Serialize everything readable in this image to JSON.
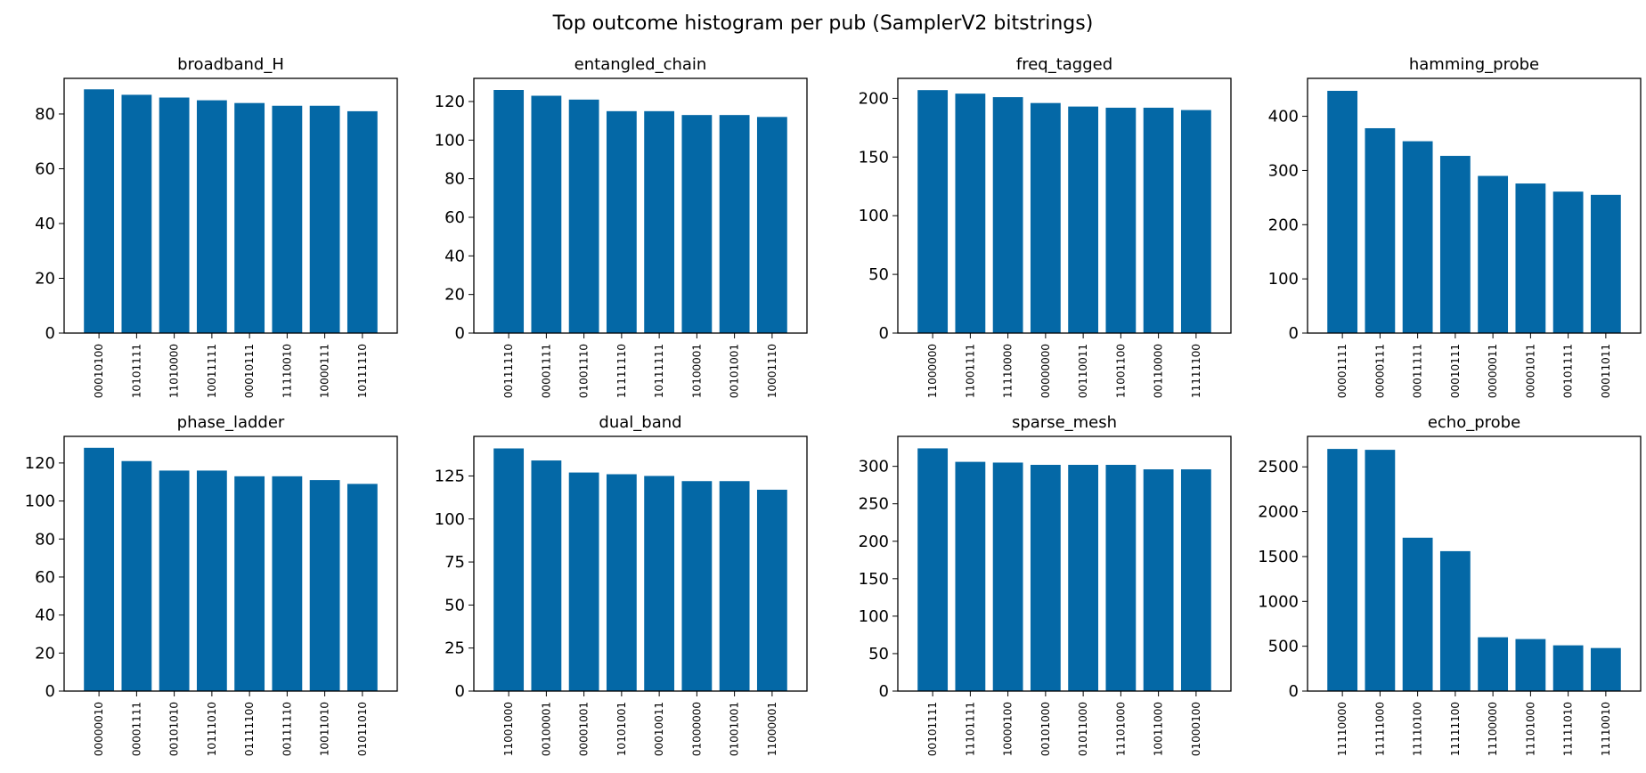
{
  "figure": {
    "title": "Top outcome histogram per pub (SamplerV2 bitstrings)",
    "bar_color": "#0468a6"
  },
  "chart_data": [
    {
      "type": "bar",
      "title": "broadband_H",
      "xlabel": "",
      "ylabel": "",
      "categories": [
        "00010100",
        "10101111",
        "11010000",
        "10011111",
        "00010111",
        "11110010",
        "10000111",
        "10111110"
      ],
      "values": [
        89,
        87,
        86,
        85,
        84,
        83,
        83,
        81
      ],
      "ylim": [
        0,
        93
      ],
      "yticks": [
        0,
        20,
        40,
        60,
        80
      ]
    },
    {
      "type": "bar",
      "title": "entangled_chain",
      "xlabel": "",
      "ylabel": "",
      "categories": [
        "00111110",
        "00001111",
        "01001110",
        "11111110",
        "10111111",
        "10100001",
        "00101001",
        "10001110"
      ],
      "values": [
        126,
        123,
        121,
        115,
        115,
        113,
        113,
        112
      ],
      "ylim": [
        0,
        132
      ],
      "yticks": [
        0,
        20,
        40,
        60,
        80,
        100,
        120
      ]
    },
    {
      "type": "bar",
      "title": "freq_tagged",
      "xlabel": "",
      "ylabel": "",
      "categories": [
        "11000000",
        "11001111",
        "11110000",
        "00000000",
        "00110011",
        "11001100",
        "00110000",
        "11111100"
      ],
      "values": [
        207,
        204,
        201,
        196,
        193,
        192,
        192,
        190
      ],
      "ylim": [
        0,
        217
      ],
      "yticks": [
        0,
        50,
        100,
        150,
        200
      ]
    },
    {
      "type": "bar",
      "title": "hamming_probe",
      "xlabel": "",
      "ylabel": "",
      "categories": [
        "00001111",
        "00000111",
        "00011111",
        "00010111",
        "00000011",
        "00001011",
        "00101111",
        "00011011"
      ],
      "values": [
        447,
        378,
        354,
        327,
        290,
        276,
        261,
        255
      ],
      "ylim": [
        0,
        470
      ],
      "yticks": [
        0,
        100,
        200,
        300,
        400
      ]
    },
    {
      "type": "bar",
      "title": "phase_ladder",
      "xlabel": "",
      "ylabel": "",
      "categories": [
        "00000010",
        "00001111",
        "00101010",
        "10111010",
        "01111100",
        "00111110",
        "10011010",
        "01011010"
      ],
      "values": [
        128,
        121,
        116,
        116,
        113,
        113,
        111,
        109
      ],
      "ylim": [
        0,
        134
      ],
      "yticks": [
        0,
        20,
        40,
        60,
        80,
        100,
        120
      ]
    },
    {
      "type": "bar",
      "title": "dual_band",
      "xlabel": "",
      "ylabel": "",
      "categories": [
        "11001000",
        "00100001",
        "00001001",
        "10101001",
        "00010011",
        "01000000",
        "01001001",
        "11000001"
      ],
      "values": [
        141,
        134,
        127,
        126,
        125,
        122,
        122,
        117
      ],
      "ylim": [
        0,
        148
      ],
      "yticks": [
        0,
        25,
        50,
        75,
        100,
        125
      ]
    },
    {
      "type": "bar",
      "title": "sparse_mesh",
      "xlabel": "",
      "ylabel": "",
      "categories": [
        "00101111",
        "11101111",
        "10000100",
        "00101000",
        "01011000",
        "11101000",
        "10011000",
        "01000100"
      ],
      "values": [
        324,
        306,
        305,
        302,
        302,
        302,
        296,
        296
      ],
      "ylim": [
        0,
        340
      ],
      "yticks": [
        0,
        50,
        100,
        150,
        200,
        250,
        300
      ]
    },
    {
      "type": "bar",
      "title": "echo_probe",
      "xlabel": "",
      "ylabel": "",
      "categories": [
        "11110000",
        "11111000",
        "11110100",
        "11111100",
        "11100000",
        "11101000",
        "11111010",
        "11110010"
      ],
      "values": [
        2700,
        2690,
        1710,
        1560,
        600,
        580,
        510,
        480
      ],
      "ylim": [
        0,
        2840
      ],
      "yticks": [
        0,
        500,
        1000,
        1500,
        2000,
        2500
      ]
    }
  ]
}
